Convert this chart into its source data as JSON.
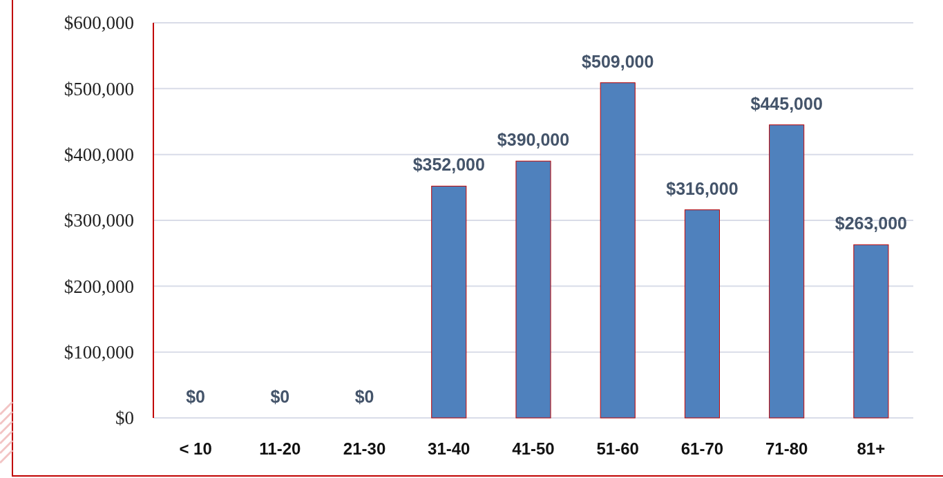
{
  "chart_data": {
    "type": "bar",
    "categories": [
      "< 10",
      "11-20",
      "21-30",
      "31-40",
      "41-50",
      "51-60",
      "61-70",
      "71-80",
      "81+"
    ],
    "values": [
      0,
      0,
      0,
      352000,
      390000,
      509000,
      316000,
      445000,
      263000
    ],
    "value_labels": [
      "$0",
      "$0",
      "$0",
      "$352,000",
      "$390,000",
      "$509,000",
      "$316,000",
      "$445,000",
      "$263,000"
    ],
    "color": "#4f81bd",
    "ylim": [
      0,
      600000
    ],
    "yticks": [
      {
        "value": 0,
        "label": "$0"
      },
      {
        "value": 100000,
        "label": "$100,000"
      },
      {
        "value": 200000,
        "label": "$200,000"
      },
      {
        "value": 300000,
        "label": "$300,000"
      },
      {
        "value": 400000,
        "label": "$400,000"
      },
      {
        "value": 500000,
        "label": "$500,000"
      },
      {
        "value": 600000,
        "label": "$600,000"
      }
    ],
    "grid": "y"
  }
}
